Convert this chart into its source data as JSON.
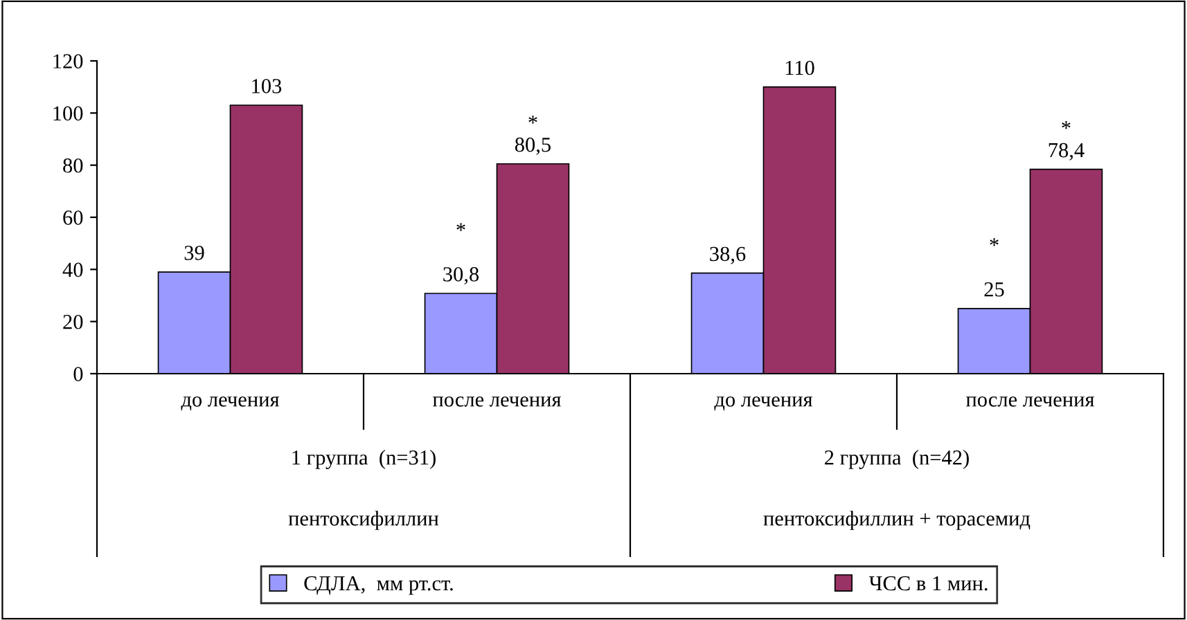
{
  "chart_data": {
    "type": "bar",
    "categories": [
      "до лечения",
      "после лечения",
      "до лечения",
      "после лечения"
    ],
    "series": [
      {
        "name": "СДЛА,  мм рт.ст.",
        "color": "#9999ff",
        "values": [
          39,
          30.8,
          38.6,
          25
        ],
        "value_labels": [
          "39",
          "*\n\n30,8",
          "38,6",
          "*\n\n25"
        ]
      },
      {
        "name": "ЧСС в 1 мин.",
        "color": "#993366",
        "values": [
          103,
          80.5,
          110,
          78.4
        ],
        "value_labels": [
          "103",
          "*\n80,5",
          "110",
          "*\n78,4"
        ]
      }
    ],
    "ylim": [
      0,
      120
    ],
    "yticks": [
      0,
      20,
      40,
      60,
      80,
      100,
      120
    ],
    "grid": false,
    "legend": "bottom",
    "annotations": [
      "1 группа  (n=31)",
      "2 группа  (n=42)",
      "пентоксифиллин",
      "пентоксифиллин + торасемид"
    ]
  }
}
